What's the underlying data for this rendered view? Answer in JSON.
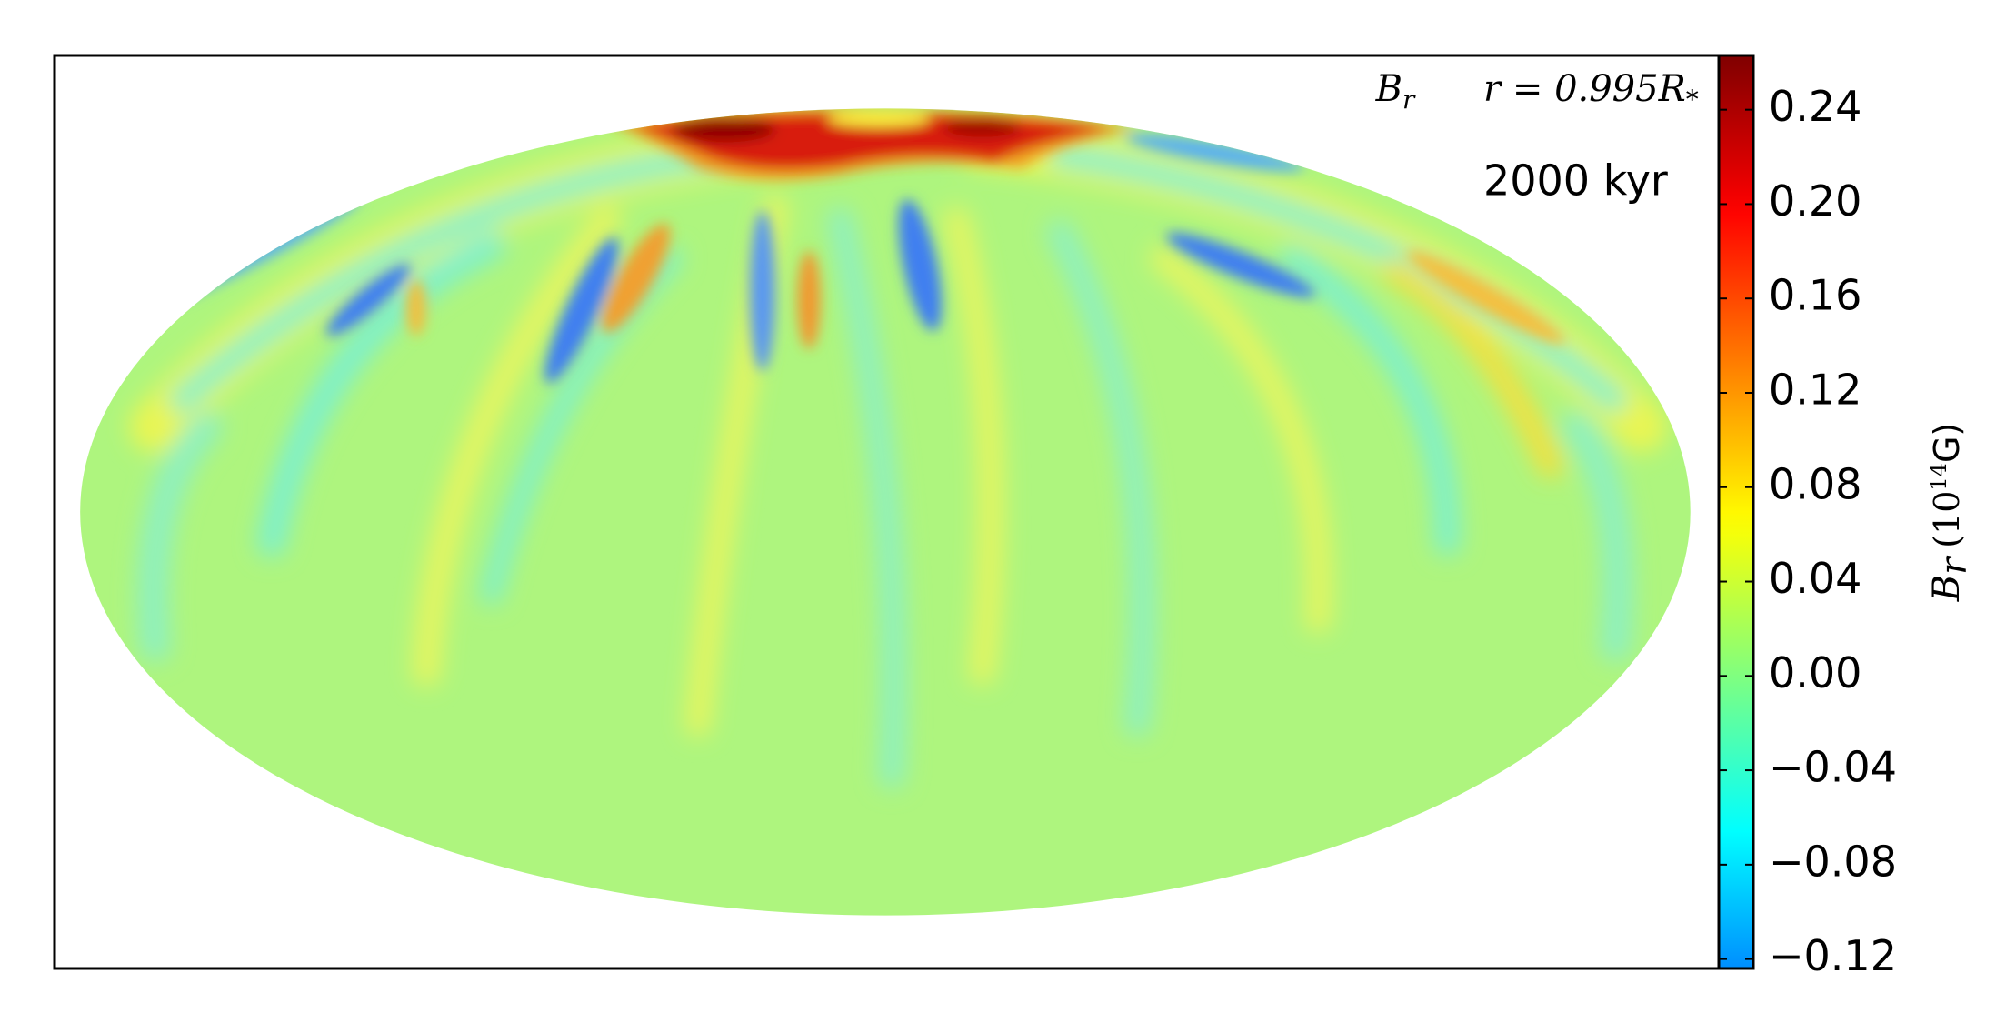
{
  "chart_data": {
    "type": "map",
    "projection": "mollweide",
    "colormap": "jet",
    "annotations": {
      "field": {
        "main": "B",
        "sub": "r"
      },
      "radius": {
        "main": "r = 0.995R",
        "sub": "*"
      },
      "time": "2000 kyr"
    },
    "colorbar": {
      "label": {
        "main": "B",
        "sub": "r",
        "unit": "(10",
        "exponent": "14",
        "unit_end": "G)"
      },
      "ylim": [
        -0.124,
        0.263
      ],
      "yticks": [
        {
          "value": -0.12,
          "label": "−0.12"
        },
        {
          "value": -0.08,
          "label": "−0.08"
        },
        {
          "value": -0.04,
          "label": "−0.04"
        },
        {
          "value": 0,
          "label": "0.00"
        },
        0.04,
        0.08,
        0.12,
        0.16,
        {
          "value": 0.2,
          "label": "0.20"
        },
        0.24
      ]
    }
  }
}
